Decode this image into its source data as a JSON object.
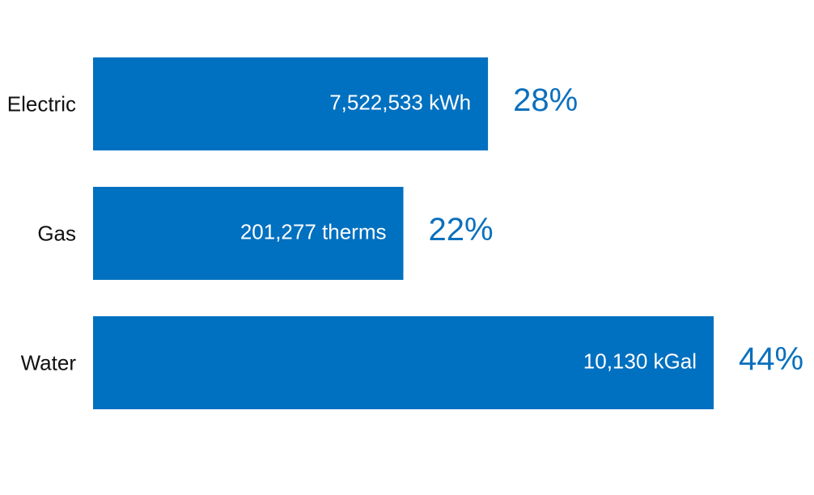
{
  "chart_data": {
    "type": "bar",
    "orientation": "horizontal",
    "categories": [
      "Electric",
      "Gas",
      "Water"
    ],
    "values": [
      28,
      22,
      44
    ],
    "value_labels": [
      "28%",
      "22%",
      "44%"
    ],
    "bar_labels": [
      "7,522,533 kWh",
      "201,277 therms",
      "10,130 kGal"
    ],
    "color": "#0070c0"
  }
}
